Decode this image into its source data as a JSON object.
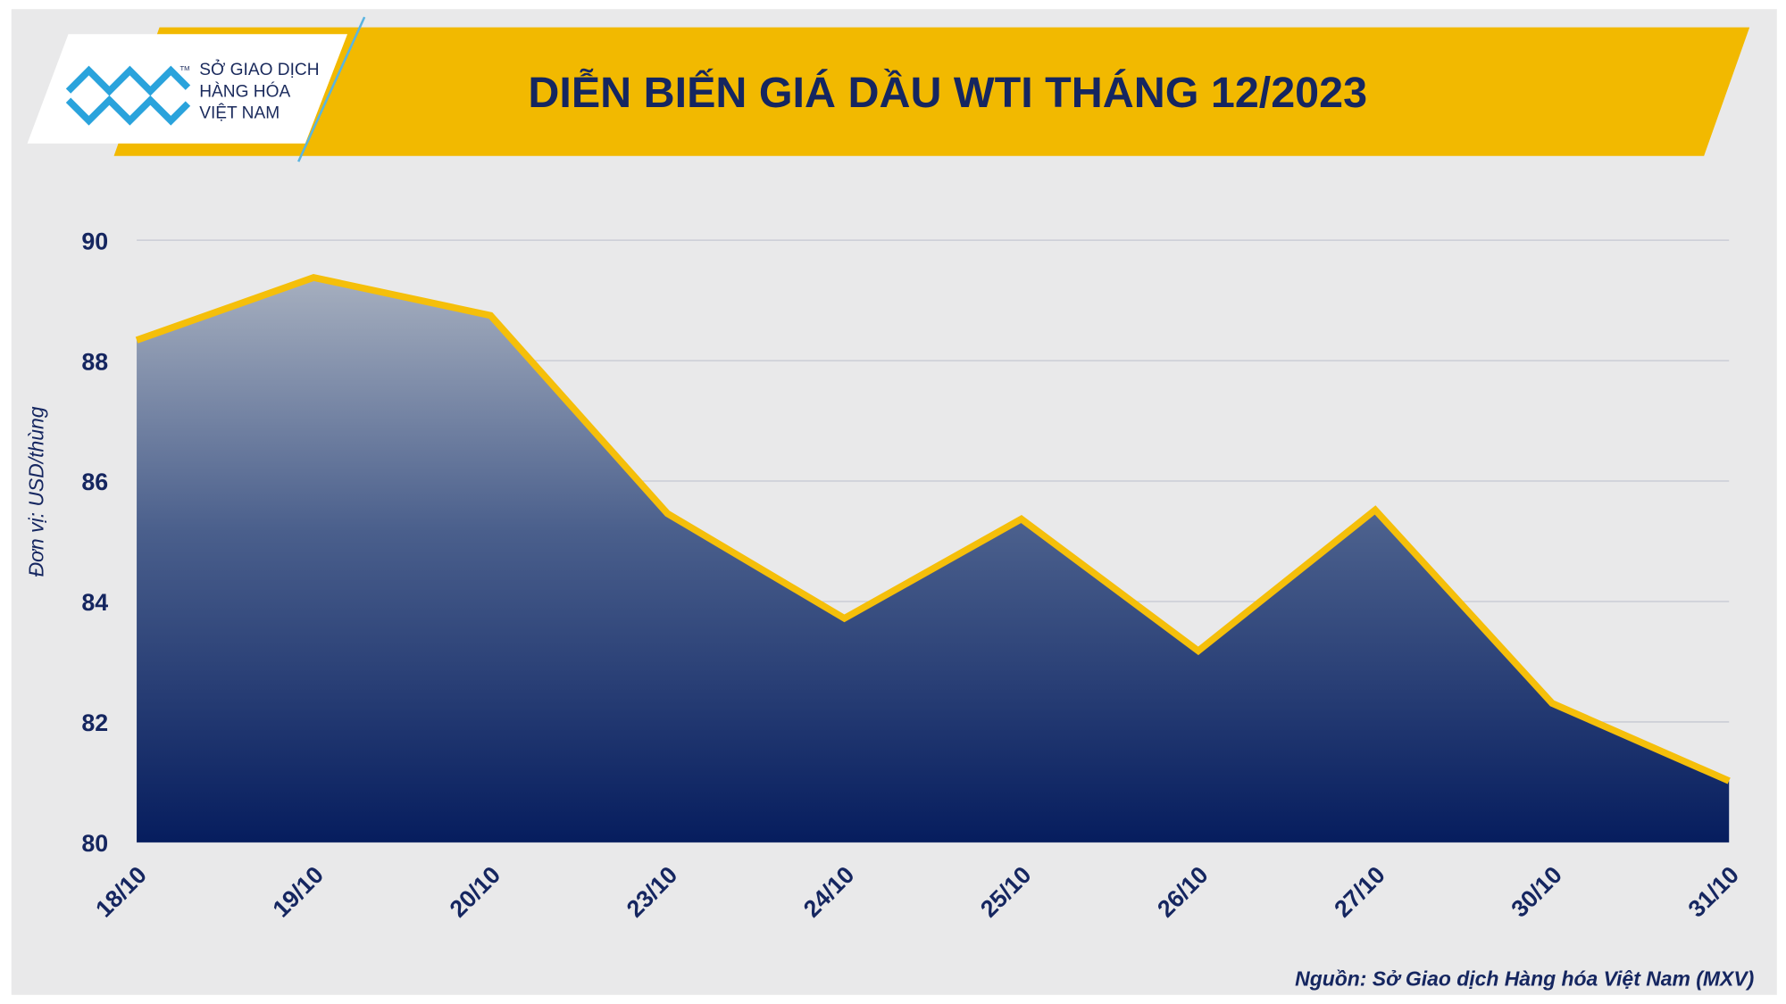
{
  "chart_data": {
    "type": "area",
    "title": "DIỄN BIẾN GIÁ DẦU WTI THÁNG 12/2023",
    "ylabel": "Đơn vị: USD/thùng",
    "source": "Nguồn: Sở Giao dịch Hàng hóa Việt Nam (MXV)",
    "categories": [
      "18/10",
      "19/10",
      "20/10",
      "23/10",
      "24/10",
      "25/10",
      "26/10",
      "27/10",
      "30/10",
      "31/10"
    ],
    "values": [
      88.34,
      89.38,
      88.75,
      85.46,
      83.72,
      85.37,
      83.18,
      85.52,
      82.31,
      81.02
    ],
    "color": "#f5bf0a",
    "ylim": [
      80,
      90
    ],
    "yticks": [
      80,
      82,
      84,
      86,
      88,
      90
    ],
    "grid": true
  },
  "logo": {
    "lines": [
      "SỞ GIAO DỊCH",
      "HÀNG HÓA",
      "VIỆT NAM"
    ],
    "mark": "TM"
  }
}
